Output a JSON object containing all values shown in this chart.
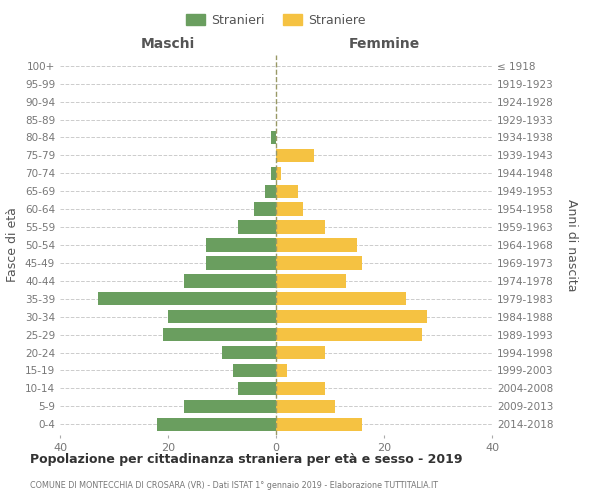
{
  "age_groups": [
    "100+",
    "95-99",
    "90-94",
    "85-89",
    "80-84",
    "75-79",
    "70-74",
    "65-69",
    "60-64",
    "55-59",
    "50-54",
    "45-49",
    "40-44",
    "35-39",
    "30-34",
    "25-29",
    "20-24",
    "15-19",
    "10-14",
    "5-9",
    "0-4"
  ],
  "birth_years": [
    "≤ 1918",
    "1919-1923",
    "1924-1928",
    "1929-1933",
    "1934-1938",
    "1939-1943",
    "1944-1948",
    "1949-1953",
    "1954-1958",
    "1959-1963",
    "1964-1968",
    "1969-1973",
    "1974-1978",
    "1979-1983",
    "1984-1988",
    "1989-1993",
    "1994-1998",
    "1999-2003",
    "2004-2008",
    "2009-2013",
    "2014-2018"
  ],
  "males": [
    0,
    0,
    0,
    0,
    1,
    0,
    1,
    2,
    4,
    7,
    13,
    13,
    17,
    33,
    20,
    21,
    10,
    8,
    7,
    17,
    22
  ],
  "females": [
    0,
    0,
    0,
    0,
    0,
    7,
    1,
    4,
    5,
    9,
    15,
    16,
    13,
    24,
    28,
    27,
    9,
    2,
    9,
    11,
    16
  ],
  "male_color": "#6a9e5f",
  "female_color": "#f5c242",
  "title": "Popolazione per cittadinanza straniera per età e sesso - 2019",
  "subtitle": "COMUNE DI MONTECCHIA DI CROSARA (VR) - Dati ISTAT 1° gennaio 2019 - Elaborazione TUTTITALIA.IT",
  "xlabel_left": "Maschi",
  "xlabel_right": "Femmine",
  "ylabel_left": "Fasce di età",
  "ylabel_right": "Anni di nascita",
  "legend_male": "Stranieri",
  "legend_female": "Straniere",
  "xlim": 40,
  "background_color": "#ffffff",
  "grid_color": "#cccccc",
  "bar_height": 0.75,
  "center_line_color": "#999966"
}
